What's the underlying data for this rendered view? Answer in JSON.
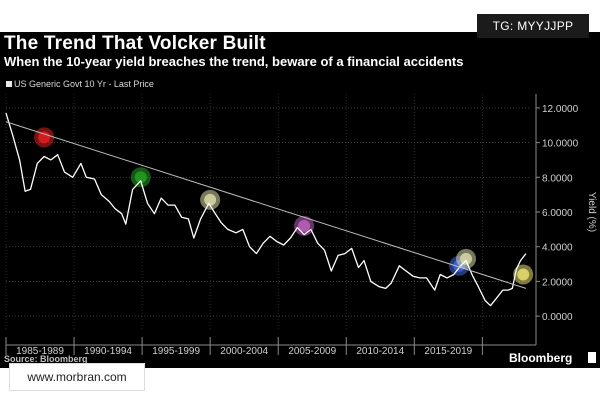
{
  "watermark_top": "TG: MYYJJPP",
  "watermark_bottom": "www.morbran.com",
  "source": "Source: Bloomberg",
  "brand": "Bloomberg",
  "chart_data": {
    "type": "line",
    "title": "The Trend That Volcker Built",
    "subtitle": "When the 10-year yield breaches the trend, beware of a financial accidents",
    "legend": "US Generic Govt 10 Yr - Last Price",
    "ylabel": "Yield (%)",
    "ylim": [
      -0.8,
      12.8
    ],
    "xlim": [
      1985.0,
      2023.5
    ],
    "y_ticks": [
      "12.0000",
      "10.0000",
      "8.0000",
      "6.0000",
      "4.0000",
      "2.0000",
      "0.0000"
    ],
    "y_tick_values": [
      12,
      10,
      8,
      6,
      4,
      2,
      0
    ],
    "x_tick_labels": [
      "1985-1989",
      "1990-1994",
      "1995-1999",
      "2000-2004",
      "2005-2009",
      "2010-2014",
      "2015-2019"
    ],
    "x_tick_centers": [
      1987.5,
      1992.5,
      1997.5,
      2002.5,
      2007.5,
      2012.5,
      2017.5
    ],
    "x_dividers": [
      1985,
      1990,
      1995,
      2000,
      2005,
      2010,
      2015,
      2020
    ],
    "series": [
      {
        "name": "US Generic Govt 10 Yr - Last Price",
        "x": [
          1985.0,
          1985.5,
          1986.0,
          1986.4,
          1986.8,
          1987.3,
          1987.8,
          1988.3,
          1988.8,
          1989.3,
          1989.9,
          1990.5,
          1990.9,
          1991.5,
          1992.0,
          1992.6,
          1993.0,
          1993.5,
          1993.8,
          1994.3,
          1994.9,
          1995.4,
          1995.9,
          1996.4,
          1996.9,
          1997.4,
          1997.9,
          1998.4,
          1998.8,
          1999.3,
          1999.9,
          2000.3,
          2000.8,
          2001.3,
          2001.9,
          2002.4,
          2002.9,
          2003.4,
          2003.9,
          2004.4,
          2004.9,
          2005.4,
          2005.9,
          2006.4,
          2006.9,
          2007.4,
          2007.9,
          2008.4,
          2008.9,
          2009.4,
          2009.9,
          2010.4,
          2010.9,
          2011.3,
          2011.8,
          2012.4,
          2012.9,
          2013.3,
          2013.9,
          2014.4,
          2014.9,
          2015.4,
          2015.9,
          2016.5,
          2016.9,
          2017.4,
          2017.9,
          2018.4,
          2018.8,
          2019.3,
          2019.7,
          2020.2,
          2020.6,
          2021.0,
          2021.5,
          2021.9,
          2022.2,
          2022.5,
          2022.8,
          2023.2
        ],
        "values": [
          11.7,
          10.4,
          9.0,
          7.2,
          7.3,
          8.8,
          9.2,
          9.0,
          9.3,
          8.3,
          8.0,
          8.8,
          8.0,
          7.9,
          7.0,
          6.6,
          6.2,
          5.9,
          5.3,
          7.3,
          7.8,
          6.5,
          5.9,
          6.8,
          6.4,
          6.4,
          5.7,
          5.6,
          4.5,
          5.6,
          6.5,
          6.0,
          5.4,
          5.0,
          4.8,
          5.0,
          4.0,
          3.6,
          4.2,
          4.6,
          4.3,
          4.1,
          4.5,
          5.1,
          4.7,
          5.0,
          4.2,
          3.8,
          2.6,
          3.5,
          3.6,
          3.9,
          2.8,
          3.2,
          2.0,
          1.7,
          1.6,
          1.9,
          2.9,
          2.6,
          2.3,
          2.2,
          2.2,
          1.5,
          2.4,
          2.2,
          2.4,
          2.9,
          3.2,
          2.3,
          1.7,
          0.9,
          0.6,
          1.0,
          1.5,
          1.5,
          1.6,
          2.7,
          3.2,
          3.6
        ]
      }
    ],
    "trend_line": {
      "x": [
        1985.0,
        2023.2
      ],
      "values": [
        11.2,
        1.6
      ]
    },
    "highlight_points": [
      {
        "x": 1987.8,
        "value": 10.3,
        "color": "#e02020"
      },
      {
        "x": 1994.9,
        "value": 8.0,
        "color": "#22a022"
      },
      {
        "x": 2000.0,
        "value": 6.7,
        "color": "#d8d8a8"
      },
      {
        "x": 2006.9,
        "value": 5.2,
        "color": "#c060c0"
      },
      {
        "x": 2018.3,
        "value": 2.9,
        "color": "#4466dd"
      },
      {
        "x": 2018.8,
        "value": 3.3,
        "color": "#d8d8a8"
      },
      {
        "x": 2023.0,
        "value": 2.4,
        "color": "#e8e070"
      }
    ]
  }
}
